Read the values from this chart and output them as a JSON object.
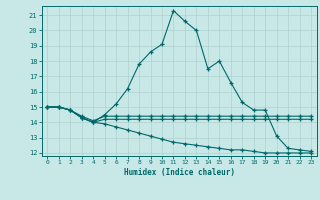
{
  "xlabel": "Humidex (Indice chaleur)",
  "bg_color": "#c8e8e8",
  "grid_color": "#b0d0d0",
  "line_color": "#006868",
  "xlim": [
    -0.5,
    23.5
  ],
  "ylim": [
    11.8,
    21.6
  ],
  "yticks": [
    12,
    13,
    14,
    15,
    16,
    17,
    18,
    19,
    20,
    21
  ],
  "xticks": [
    0,
    1,
    2,
    3,
    4,
    5,
    6,
    7,
    8,
    9,
    10,
    11,
    12,
    13,
    14,
    15,
    16,
    17,
    18,
    19,
    20,
    21,
    22,
    23
  ],
  "line1_x": [
    0,
    1,
    2,
    3,
    4,
    5,
    6,
    7,
    8,
    9,
    10,
    11,
    12,
    13,
    14,
    15,
    16,
    17,
    18,
    19,
    20,
    21,
    22,
    23
  ],
  "line1_y": [
    15.0,
    15.0,
    14.8,
    14.3,
    14.0,
    14.5,
    15.2,
    16.2,
    17.8,
    18.6,
    19.1,
    21.3,
    20.6,
    20.0,
    17.5,
    18.0,
    16.6,
    15.3,
    14.8,
    14.8,
    13.1,
    12.3,
    12.2,
    12.1
  ],
  "line2_x": [
    0,
    1,
    2,
    3,
    4,
    5,
    6,
    7,
    8,
    9,
    10,
    11,
    12,
    13,
    14,
    15,
    16,
    17,
    18,
    19,
    20,
    21,
    22,
    23
  ],
  "line2_y": [
    15.0,
    15.0,
    14.8,
    14.4,
    14.1,
    14.4,
    14.4,
    14.4,
    14.4,
    14.4,
    14.4,
    14.4,
    14.4,
    14.4,
    14.4,
    14.4,
    14.4,
    14.4,
    14.4,
    14.4,
    14.4,
    14.4,
    14.4,
    14.4
  ],
  "line3_x": [
    0,
    1,
    2,
    3,
    4,
    5,
    6,
    7,
    8,
    9,
    10,
    11,
    12,
    13,
    14,
    15,
    16,
    17,
    18,
    19,
    20,
    21,
    22,
    23
  ],
  "line3_y": [
    15.0,
    15.0,
    14.8,
    14.3,
    14.0,
    14.2,
    14.2,
    14.2,
    14.2,
    14.2,
    14.2,
    14.2,
    14.2,
    14.2,
    14.2,
    14.2,
    14.2,
    14.2,
    14.2,
    14.2,
    14.2,
    14.2,
    14.2,
    14.2
  ],
  "line4_x": [
    0,
    1,
    2,
    3,
    4,
    5,
    6,
    7,
    8,
    9,
    10,
    11,
    12,
    13,
    14,
    15,
    16,
    17,
    18,
    19,
    20,
    21,
    22,
    23
  ],
  "line4_y": [
    15.0,
    15.0,
    14.8,
    14.3,
    14.0,
    13.9,
    13.7,
    13.5,
    13.3,
    13.1,
    12.9,
    12.7,
    12.6,
    12.5,
    12.4,
    12.3,
    12.2,
    12.2,
    12.1,
    12.0,
    12.0,
    12.0,
    12.0,
    12.0
  ]
}
